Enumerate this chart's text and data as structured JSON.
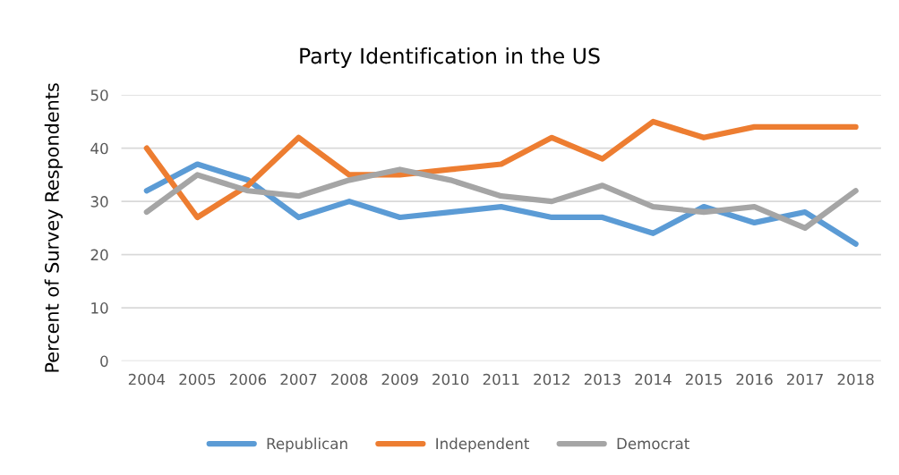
{
  "chart_data": {
    "type": "line",
    "title": "Party Identification in the US",
    "ylabel": "Percent of Survey Respondents",
    "categories": [
      "2004",
      "2005",
      "2006",
      "2007",
      "2008",
      "2009",
      "2010",
      "2011",
      "2012",
      "2013",
      "2014",
      "2015",
      "2016",
      "2017",
      "2018"
    ],
    "series": [
      {
        "name": "Republican",
        "color": "#5b9bd5",
        "values": [
          32,
          37,
          34,
          27,
          30,
          27,
          28,
          29,
          27,
          27,
          24,
          29,
          26,
          28,
          22
        ]
      },
      {
        "name": "Independent",
        "color": "#ed7d31",
        "values": [
          40,
          27,
          33,
          42,
          35,
          35,
          36,
          37,
          42,
          38,
          45,
          42,
          44,
          44,
          44
        ]
      },
      {
        "name": "Democrat",
        "color": "#a5a5a5",
        "values": [
          28,
          35,
          32,
          31,
          34,
          36,
          34,
          31,
          30,
          33,
          29,
          28,
          29,
          25,
          32
        ]
      }
    ],
    "ylim": [
      0,
      50
    ],
    "yticks": [
      0,
      10,
      20,
      30,
      40,
      50
    ],
    "grid": "y",
    "legend": "bottom",
    "marker": "none",
    "line_style": "solid"
  }
}
